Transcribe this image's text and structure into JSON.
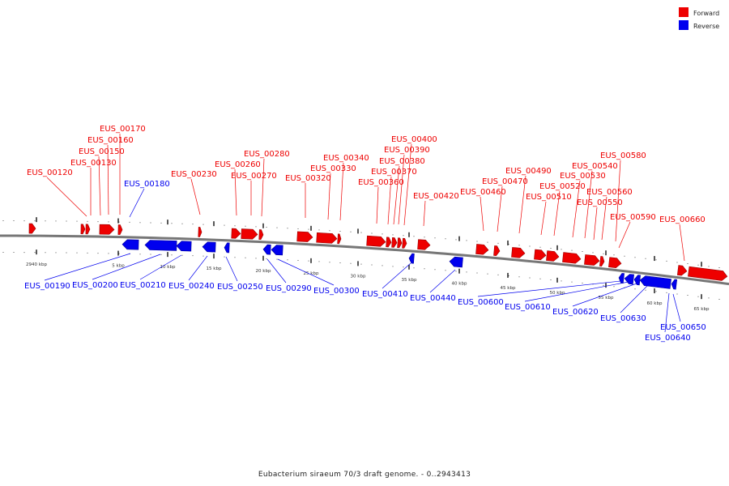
{
  "colors": {
    "forward": "#ee0000",
    "reverse": "#0000ee",
    "backbone": "#777777",
    "forward_dark": "#990000",
    "reverse_dark": "#000099"
  },
  "legend": {
    "forward_label": "Forward",
    "reverse_label": "Reverse"
  },
  "caption": "Eubacterium siraeum 70/3 draft genome. - 0..2943413",
  "tick_labels": [
    "2940 kbp",
    "5 kbp",
    "10 kbp",
    "15 kbp",
    "20 kbp",
    "25 kbp",
    "30 kbp",
    "35 kbp",
    "40 kbp",
    "45 kbp",
    "50 kbp",
    "55 kbp",
    "60 kbp",
    "65 kbp"
  ],
  "forward_genes": [
    "EUS_00120",
    "EUS_00130",
    "EUS_00150",
    "EUS_00160",
    "EUS_00170",
    "EUS_00230",
    "EUS_00260",
    "EUS_00270",
    "EUS_00280",
    "EUS_00320",
    "EUS_00330",
    "EUS_00340",
    "EUS_00360",
    "EUS_00370",
    "EUS_00380",
    "EUS_00390",
    "EUS_00400",
    "EUS_00420",
    "EUS_00460",
    "EUS_00470",
    "EUS_00490",
    "EUS_00510",
    "EUS_00520",
    "EUS_00530",
    "EUS_00540",
    "EUS_00550",
    "EUS_00560",
    "EUS_00580",
    "EUS_00590",
    "EUS_00660"
  ],
  "reverse_genes": [
    "EUS_00180",
    "EUS_00190",
    "EUS_00200",
    "EUS_00210",
    "EUS_00240",
    "EUS_00250",
    "EUS_00290",
    "EUS_00300",
    "EUS_00410",
    "EUS_00440",
    "EUS_00600",
    "EUS_00610",
    "EUS_00620",
    "EUS_00630",
    "EUS_00640",
    "EUS_00650"
  ]
}
